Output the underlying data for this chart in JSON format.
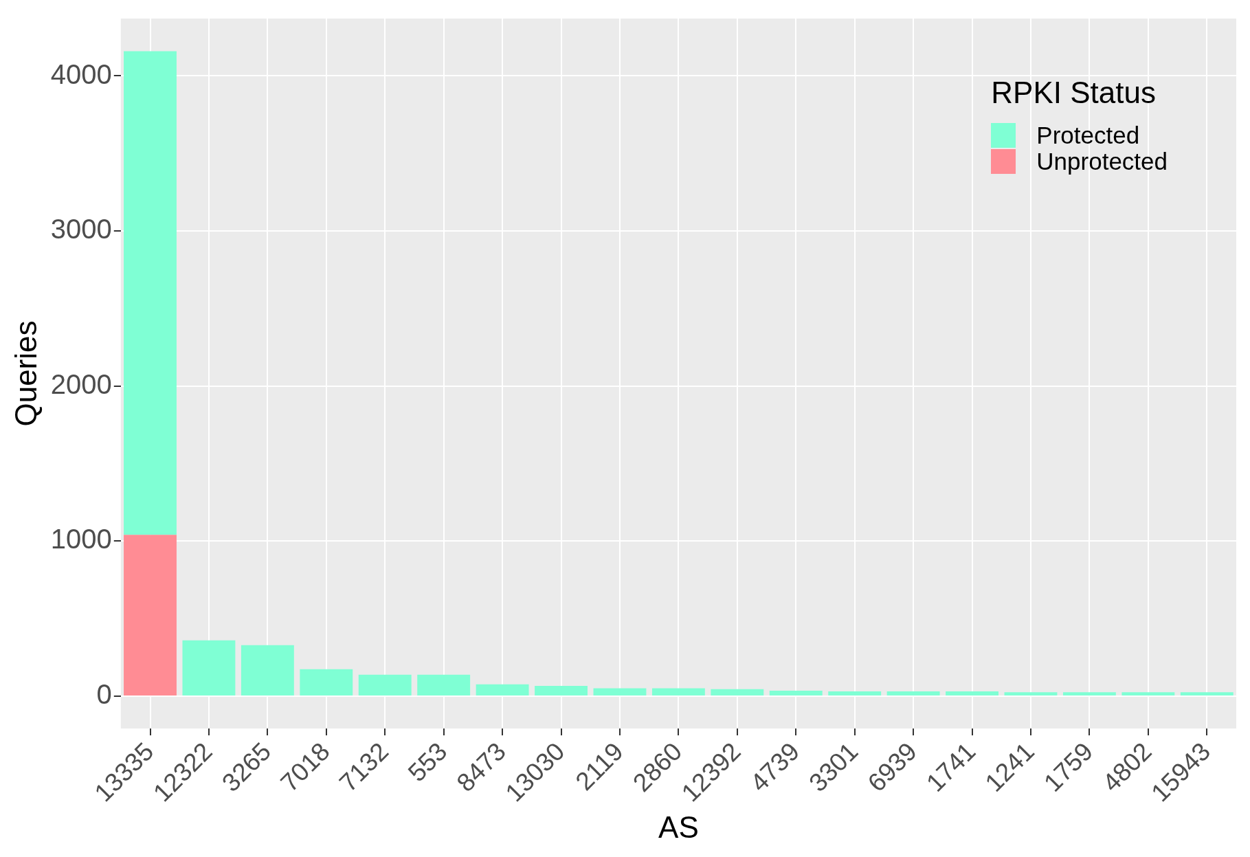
{
  "chart_data": {
    "type": "bar",
    "xlabel": "AS",
    "ylabel": "Queries",
    "legend_title": "RPKI Status",
    "legend": "top right",
    "stacked": true,
    "grid": true,
    "categories": [
      "13335",
      "12322",
      "3265",
      "7018",
      "7132",
      "553",
      "8473",
      "13030",
      "2119",
      "2860",
      "12392",
      "4739",
      "3301",
      "6939",
      "1741",
      "1241",
      "1759",
      "4802",
      "15943"
    ],
    "series": [
      {
        "name": "Unprotected",
        "color": "#ff8c94",
        "values": [
          1041,
          0,
          0,
          0,
          0,
          0,
          0,
          0,
          0,
          0,
          0,
          0,
          0,
          0,
          0,
          0,
          0,
          0,
          0
        ]
      },
      {
        "name": "Protected",
        "color": "#7fffd4",
        "values": [
          3119,
          361,
          330,
          175,
          139,
          139,
          77,
          67,
          52,
          52,
          46,
          36,
          31,
          31,
          31,
          26,
          26,
          26,
          26
        ]
      }
    ],
    "ylim": [
      -208,
      4370
    ],
    "yticks": [
      0,
      1000,
      2000,
      3000,
      4000
    ]
  }
}
